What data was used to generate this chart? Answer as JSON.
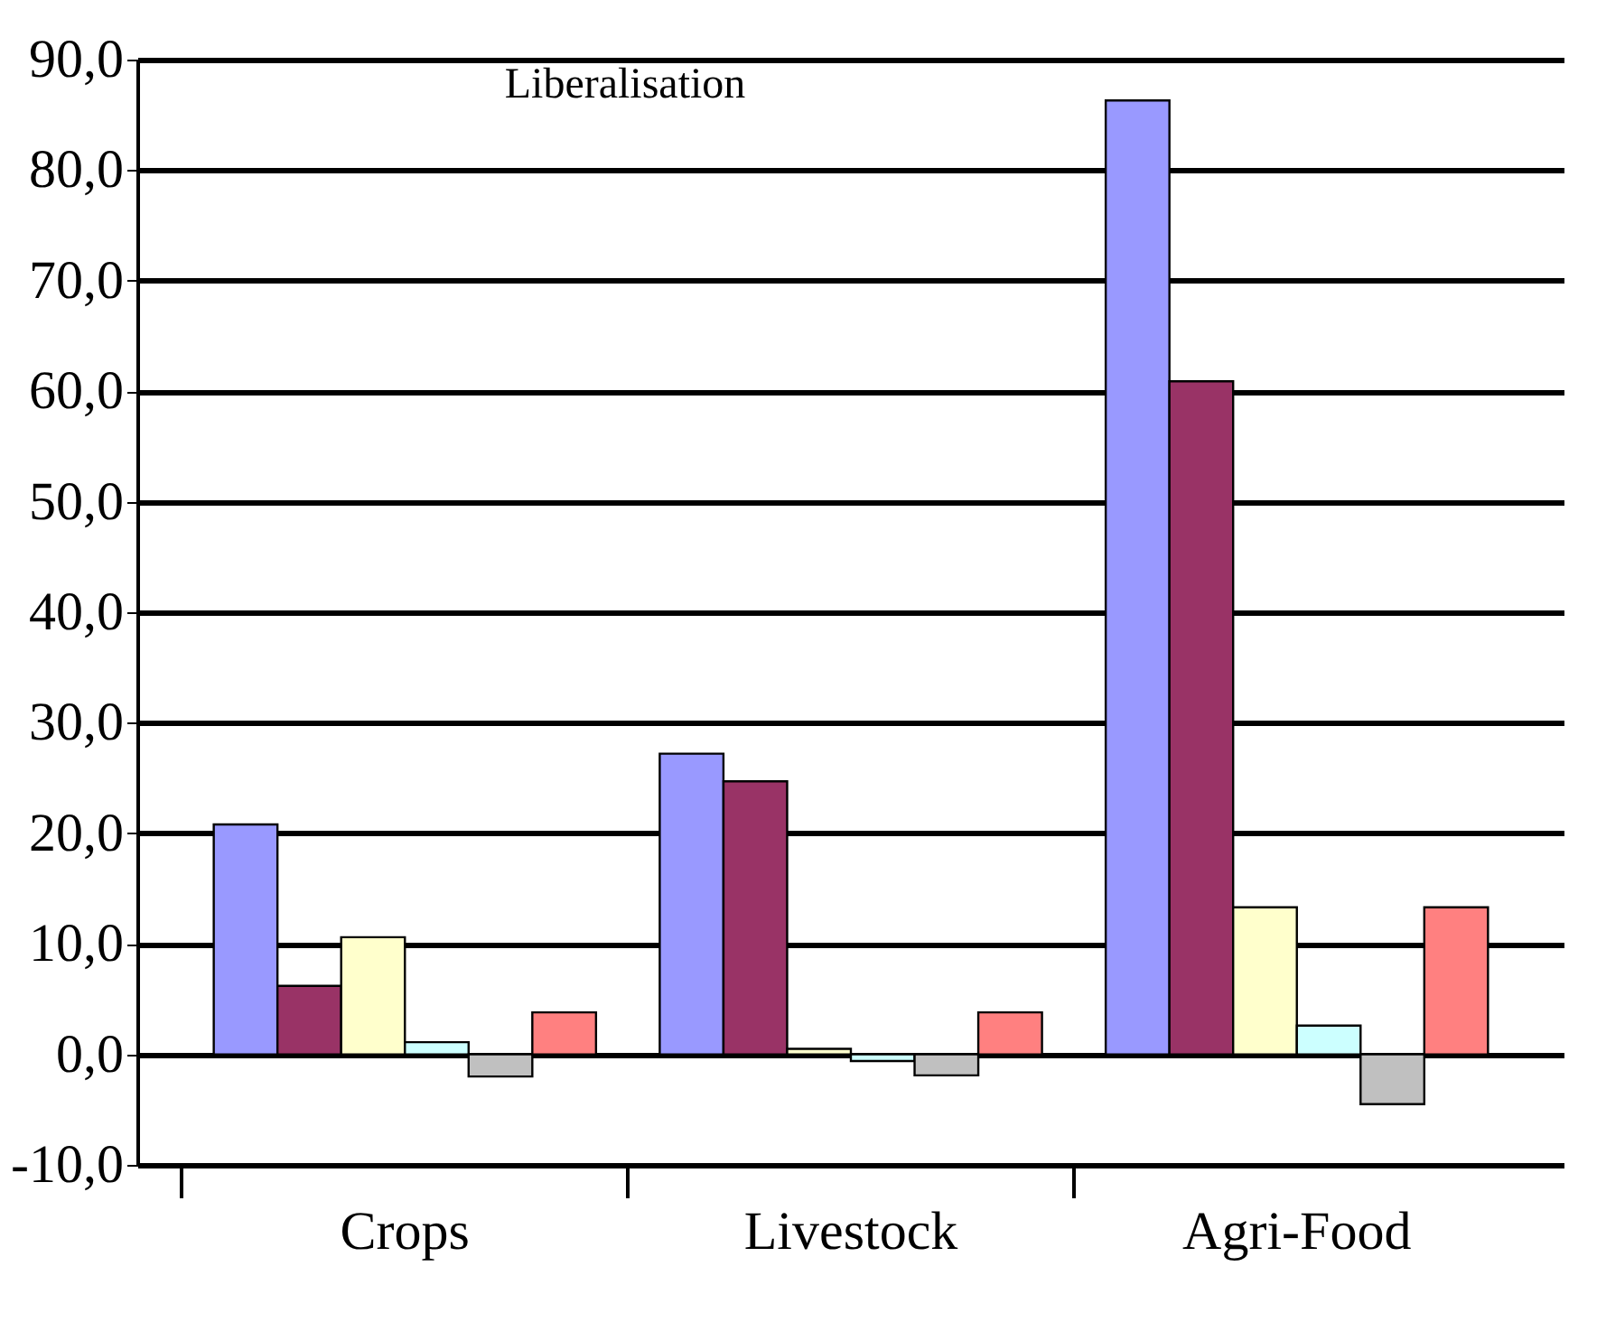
{
  "chart_data": {
    "type": "bar",
    "annotations": [
      "Liberalisation"
    ],
    "categories": [
      "Crops",
      "Livestock",
      "Agri-Food"
    ],
    "series": [
      {
        "color": "#9999ff",
        "values": [
          20.8,
          27.2,
          86.3
        ]
      },
      {
        "color": "#993366",
        "values": [
          6.2,
          24.7,
          60.9
        ]
      },
      {
        "color": "#ffffcc",
        "values": [
          10.6,
          0.5,
          13.3
        ]
      },
      {
        "color": "#ccffff",
        "values": [
          1.1,
          -0.6,
          2.6
        ]
      },
      {
        "color": "#c0c0c0",
        "values": [
          -2.0,
          -1.9,
          -4.5
        ]
      },
      {
        "color": "#ff8080",
        "values": [
          3.8,
          3.8,
          13.3
        ]
      }
    ],
    "ylim": [
      -10,
      90
    ],
    "yticks": [
      {
        "value": -10,
        "label": "-10,0"
      },
      {
        "value": 0,
        "label": "0,0"
      },
      {
        "value": 10,
        "label": "10,0"
      },
      {
        "value": 20,
        "label": "20,0"
      },
      {
        "value": 30,
        "label": "30,0"
      },
      {
        "value": 40,
        "label": "40,0"
      },
      {
        "value": 50,
        "label": "50,0"
      },
      {
        "value": 60,
        "label": "60,0"
      },
      {
        "value": 70,
        "label": "70,0"
      },
      {
        "value": 80,
        "label": "80,0"
      },
      {
        "value": 90,
        "label": "90,0"
      }
    ],
    "grid": "y",
    "legend": false
  }
}
